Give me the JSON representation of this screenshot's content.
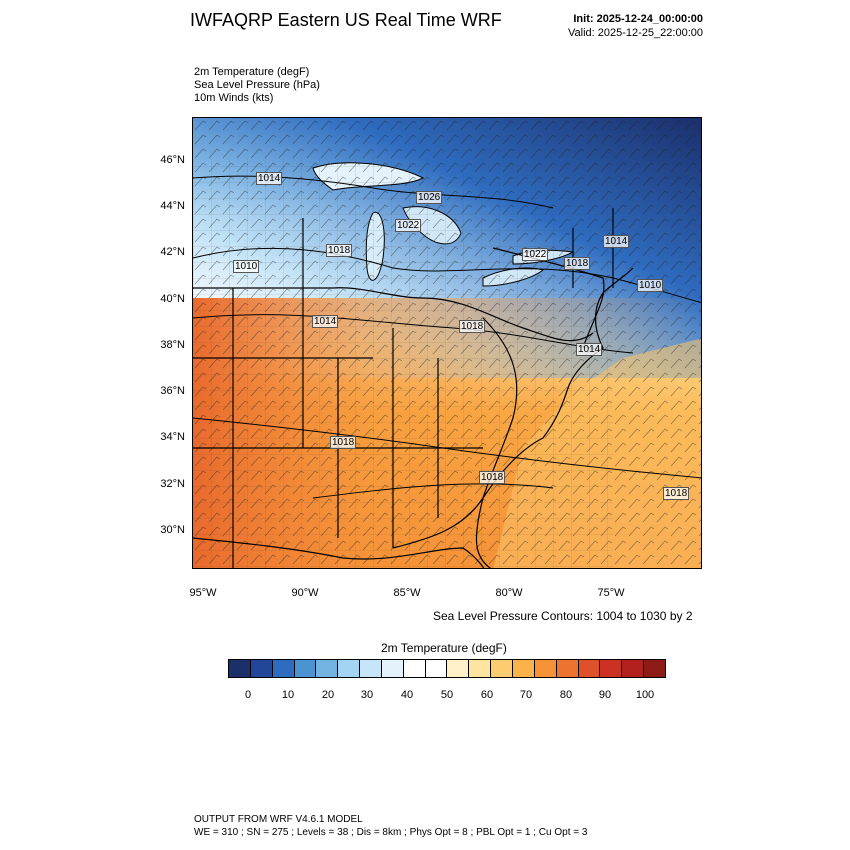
{
  "header": {
    "title": "IWFAQRP Eastern US Real Time WRF",
    "init": "Init: 2025-12-24_00:00:00",
    "valid": "Valid: 2025-12-25_22:00:00"
  },
  "variables": [
    "2m Temperature   (degF)",
    "Sea Level Pressure   (hPa)",
    "10m Winds   (kts)"
  ],
  "map": {
    "lat_labels": [
      "46°N",
      "44°N",
      "42°N",
      "40°N",
      "38°N",
      "36°N",
      "34°N",
      "32°N",
      "30°N"
    ],
    "lon_labels": [
      "95°W",
      "90°W",
      "85°W",
      "80°W",
      "75°W"
    ],
    "pressure_labels": [
      "1014",
      "1026",
      "1022",
      "1018",
      "1010",
      "1022",
      "1018",
      "1014",
      "1010",
      "1014",
      "1018",
      "1014",
      "1018",
      "1018",
      "1018"
    ],
    "contour_note": "Sea Level Pressure Contours: 1004 to 1030 by 2"
  },
  "colorbar": {
    "title": "2m Temperature  (degF)",
    "colors": [
      "#1b2f6b",
      "#22479a",
      "#2f6cbf",
      "#4b93d1",
      "#72b3e2",
      "#a3d4f2",
      "#c6e5f8",
      "#e3f2fb",
      "#ffffff",
      "#ffffff",
      "#fff0c8",
      "#fde4a0",
      "#fdcb70",
      "#fbb24a",
      "#f59238",
      "#ec7430",
      "#e0502a",
      "#cc3224",
      "#b2201e",
      "#8e1a18"
    ],
    "tick_labels": [
      "0",
      "10",
      "20",
      "30",
      "40",
      "50",
      "60",
      "70",
      "80",
      "90",
      "100"
    ]
  },
  "footer": {
    "line1": "OUTPUT FROM WRF V4.6.1 MODEL",
    "line2": "WE = 310 ; SN = 275 ; Levels = 38 ; Dis = 8km ; Phys Opt = 8 ; PBL Opt = 1 ; Cu Opt = 3"
  }
}
